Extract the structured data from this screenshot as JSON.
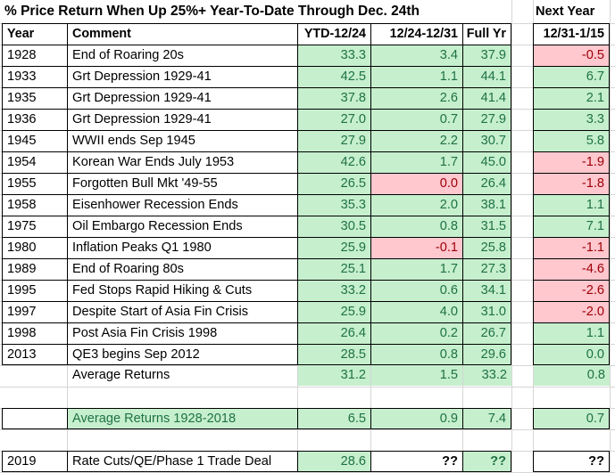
{
  "title": "% Price Return When Up 25%+ Year-To-Date Through Dec. 24th",
  "next_year_label": "Next Year",
  "headers": {
    "year": "Year",
    "comment": "Comment",
    "ytd": "YTD-12/24",
    "week": "12/24-12/31",
    "full": "Full Yr",
    "next": "12/31-1/15"
  },
  "colors": {
    "green_fill": "#c6efce",
    "green_text": "#1f7246",
    "red_fill": "#ffc7ce",
    "red_text": "#9c0006",
    "grid_line": "#d6d6d6",
    "border": "#000000"
  },
  "rows": [
    {
      "year": "1928",
      "comment": "End of Roaring 20s",
      "values": [
        "33.3",
        "3.4",
        "37.9"
      ],
      "styles": [
        "g",
        "g",
        "g"
      ],
      "next": "-0.5",
      "next_style": "r",
      "bordered": true
    },
    {
      "year": "1933",
      "comment": "Grt Depression 1929-41",
      "values": [
        "42.5",
        "1.1",
        "44.1"
      ],
      "styles": [
        "g",
        "g",
        "g"
      ],
      "next": "6.7",
      "next_style": "g",
      "bordered": true
    },
    {
      "year": "1935",
      "comment": "Grt Depression 1929-41",
      "values": [
        "37.8",
        "2.6",
        "41.4"
      ],
      "styles": [
        "g",
        "g",
        "g"
      ],
      "next": "2.1",
      "next_style": "g",
      "bordered": true
    },
    {
      "year": "1936",
      "comment": "Grt Depression 1929-41",
      "values": [
        "27.0",
        "0.7",
        "27.9"
      ],
      "styles": [
        "g",
        "g",
        "g"
      ],
      "next": "3.3",
      "next_style": "g",
      "bordered": true
    },
    {
      "year": "1945",
      "comment": "WWII ends Sep 1945",
      "values": [
        "27.9",
        "2.2",
        "30.7"
      ],
      "styles": [
        "g",
        "g",
        "g"
      ],
      "next": "5.8",
      "next_style": "g",
      "bordered": true
    },
    {
      "year": "1954",
      "comment": "Korean War Ends July 1953",
      "values": [
        "42.6",
        "1.7",
        "45.0"
      ],
      "styles": [
        "g",
        "g",
        "g"
      ],
      "next": "-1.9",
      "next_style": "r",
      "bordered": true
    },
    {
      "year": "1955",
      "comment": "Forgotten Bull Mkt '49-55",
      "values": [
        "26.5",
        "0.0",
        "26.4"
      ],
      "styles": [
        "g",
        "r",
        "g"
      ],
      "next": "-1.8",
      "next_style": "r",
      "bordered": true
    },
    {
      "year": "1958",
      "comment": "Eisenhower Recession Ends",
      "values": [
        "35.3",
        "2.0",
        "38.1"
      ],
      "styles": [
        "g",
        "g",
        "g"
      ],
      "next": "1.1",
      "next_style": "g",
      "bordered": true
    },
    {
      "year": "1975",
      "comment": "Oil Embargo Recession Ends",
      "values": [
        "30.5",
        "0.8",
        "31.5"
      ],
      "styles": [
        "g",
        "g",
        "g"
      ],
      "next": "7.1",
      "next_style": "g",
      "bordered": true
    },
    {
      "year": "1980",
      "comment": "Inflation Peaks Q1 1980",
      "values": [
        "25.9",
        "-0.1",
        "25.8"
      ],
      "styles": [
        "g",
        "r",
        "g"
      ],
      "next": "-1.1",
      "next_style": "r",
      "bordered": true
    },
    {
      "year": "1989",
      "comment": "End of Roaring 80s",
      "values": [
        "25.1",
        "1.7",
        "27.3"
      ],
      "styles": [
        "g",
        "g",
        "g"
      ],
      "next": "-4.6",
      "next_style": "r",
      "bordered": true
    },
    {
      "year": "1995",
      "comment": "Fed Stops Rapid Hiking & Cuts",
      "values": [
        "33.2",
        "0.6",
        "34.1"
      ],
      "styles": [
        "g",
        "g",
        "g"
      ],
      "next": "-2.6",
      "next_style": "r",
      "bordered": true
    },
    {
      "year": "1997",
      "comment": "Despite Start of Asia Fin Crisis",
      "values": [
        "25.9",
        "4.0",
        "31.0"
      ],
      "styles": [
        "g",
        "g",
        "g"
      ],
      "next": "-2.0",
      "next_style": "r",
      "bordered": true
    },
    {
      "year": "1998",
      "comment": "Post Asia Fin Crisis 1998",
      "values": [
        "26.4",
        "0.2",
        "26.7"
      ],
      "styles": [
        "g",
        "g",
        "g"
      ],
      "next": "1.1",
      "next_style": "g",
      "bordered": true
    },
    {
      "year": "2013",
      "comment": "QE3 begins Sep 2012",
      "values": [
        "28.5",
        "0.8",
        "29.6"
      ],
      "styles": [
        "g",
        "g",
        "g"
      ],
      "next": "0.0",
      "next_style": "g",
      "bordered": true
    },
    {
      "year": "",
      "comment": "Average Returns",
      "values": [
        "31.2",
        "1.5",
        "33.2"
      ],
      "styles": [
        "g",
        "g",
        "g"
      ],
      "next": "0.8",
      "next_style": "g",
      "bordered": false
    },
    {
      "blank": true
    },
    {
      "year": "",
      "comment": "Average Returns 1928-2018",
      "comment_style": "g",
      "values": [
        "6.5",
        "0.9",
        "7.4"
      ],
      "styles": [
        "g",
        "g",
        "g"
      ],
      "next": "0.7",
      "next_style": "g",
      "bordered": true
    },
    {
      "blank": true
    },
    {
      "year": "2019",
      "comment": "Rate Cuts/QE/Phase 1 Trade Deal",
      "values": [
        "28.6",
        "??",
        "??"
      ],
      "styles": [
        "g",
        "q",
        "gq"
      ],
      "next": "??",
      "next_style": "q",
      "bordered": true
    }
  ]
}
